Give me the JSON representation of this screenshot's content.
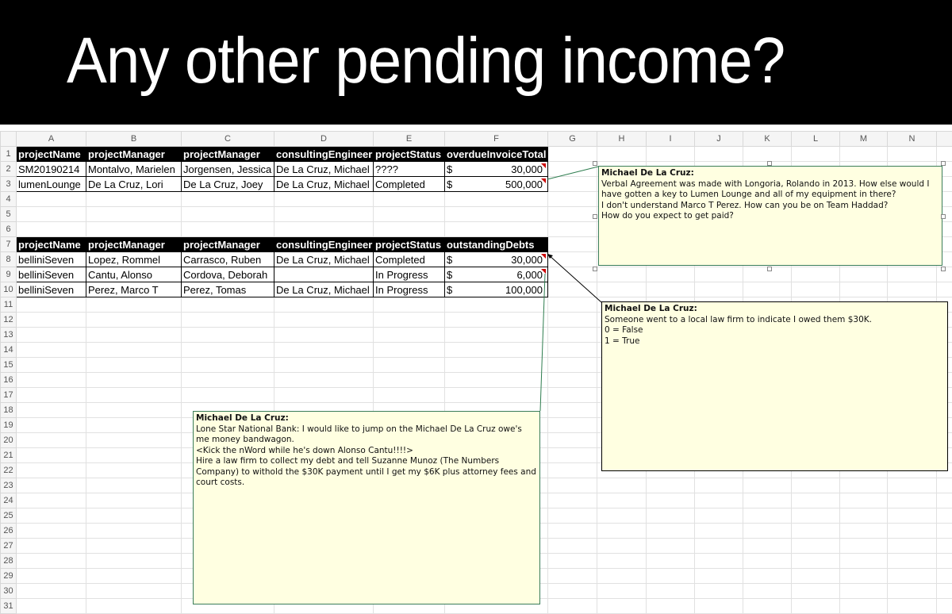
{
  "banner": {
    "title": "Any other pending income?"
  },
  "columns": [
    "A",
    "B",
    "C",
    "D",
    "E",
    "F",
    "G",
    "H",
    "I",
    "J",
    "K",
    "L",
    "M",
    "N",
    ""
  ],
  "table1": {
    "headers": [
      "projectName",
      "projectManager",
      "projectManager",
      "consultingEngineer",
      "projectStatus",
      "overdueInvoiceTotal"
    ],
    "rows": [
      {
        "cells": [
          "SM20190214",
          "Montalvo, Marielen",
          "Jorgensen, Jessica",
          "De La Cruz, Michael",
          "????"
        ],
        "currency": "$",
        "amount": "30,000"
      },
      {
        "cells": [
          "lumenLounge",
          "De La Cruz, Lori",
          "De La Cruz, Joey",
          "De La Cruz, Michael",
          "Completed"
        ],
        "currency": "$",
        "amount": "500,000"
      }
    ]
  },
  "table2": {
    "headers": [
      "projectName",
      "projectManager",
      "projectManager",
      "consultingEngineer",
      "projectStatus",
      "outstandingDebts"
    ],
    "rows": [
      {
        "cells": [
          "belliniSeven",
          "Lopez, Rommel",
          "Carrasco, Ruben",
          "De La Cruz, Michael",
          "Completed"
        ],
        "currency": "$",
        "amount": "30,000"
      },
      {
        "cells": [
          "belliniSeven",
          "Cantu, Alonso",
          "Cordova, Deborah",
          "",
          "In Progress"
        ],
        "currency": "$",
        "amount": "6,000"
      },
      {
        "cells": [
          "belliniSeven",
          "Perez, Marco T",
          "Perez, Tomas",
          "De La Cruz, Michael",
          "In Progress"
        ],
        "currency": "$",
        "amount": "100,000"
      }
    ]
  },
  "comments": [
    {
      "author": "Michael De La Cruz:",
      "lines": [
        "Verbal Agreement was made with Longoria, Rolando in 2013.  How else would I have gotten a key to Lumen Lounge and all of my equipment in there?",
        "I don't understand Marco T Perez.  How can you be on Team Haddad?",
        "How do you expect to get paid?"
      ]
    },
    {
      "author": "Michael De La Cruz:",
      "lines": [
        "Someone went to a local law firm to indicate I owed them $30K.",
        "0 = False",
        "1 = True"
      ]
    },
    {
      "author": "Michael De La Cruz:",
      "lines": [
        "Lone Star National Bank:  I would like to jump on the Michael De La Cruz owe's me money bandwagon.",
        "<Kick the nWord while he's down Alonso Cantu!!!!>",
        "Hire a law firm to collect my debt and tell Suzanne Munoz (The Numbers Company) to withold the $30K payment until I get my $6K plus attorney fees and court costs."
      ]
    }
  ]
}
